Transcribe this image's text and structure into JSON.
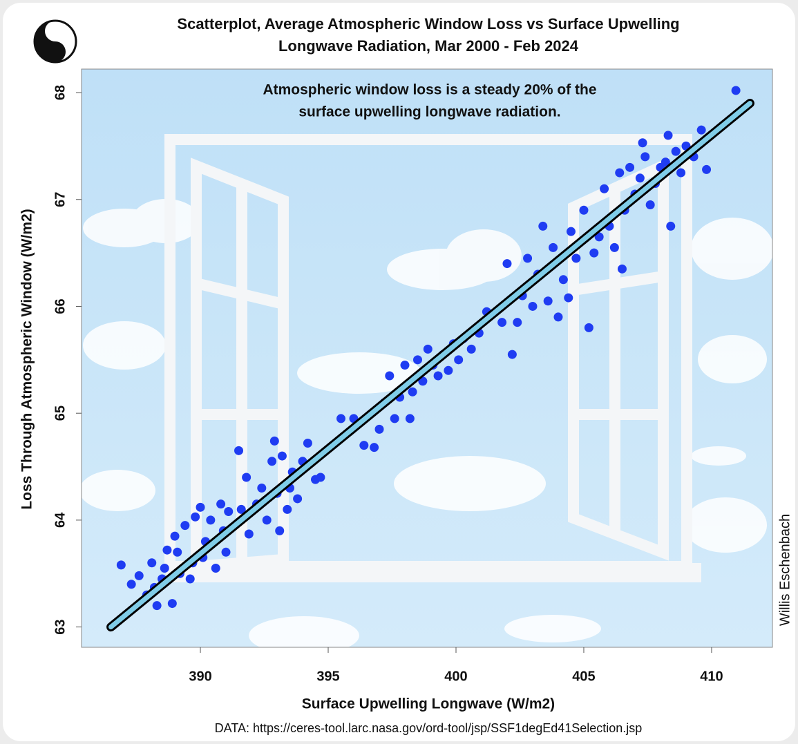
{
  "chart_data": {
    "type": "scatter",
    "title": [
      "Scatterplot, Average Atmospheric Window Loss vs Surface Upwelling",
      "Longwave Radiation, Mar 2000 - Feb 2024"
    ],
    "annotation": [
      "Atmospheric window loss is a steady 20% of the",
      "surface upwelling longwave radiation."
    ],
    "xlabel": "Surface Upwelling Longwave (W/m2)",
    "ylabel": "Loss Through Atmospheric Window (W/m2)",
    "source": "DATA: https://ceres-tool.larc.nasa.gov/ord-tool/jsp/SSF1degEd41Selection.jsp",
    "credit": "Willis Eschenbach",
    "xlim": [
      385.35,
      412.38
    ],
    "ylim": [
      62.81,
      68.22
    ],
    "xticks": [
      390,
      395,
      400,
      405,
      410
    ],
    "yticks": [
      63,
      64,
      65,
      66,
      67,
      68
    ],
    "series": [
      {
        "color": "#1f3cf2",
        "x": [
          386.9,
          387.3,
          387.6,
          387.9,
          388.1,
          388.3,
          388.5,
          388.7,
          388.9,
          389.0,
          389.2,
          389.4,
          389.6,
          389.8,
          390.0,
          390.2,
          390.4,
          390.6,
          390.8,
          391.0,
          391.1,
          388.2,
          388.6,
          389.1,
          389.7,
          390.1,
          390.9,
          391.5,
          391.6,
          391.8,
          391.9,
          392.2,
          392.4,
          392.6,
          392.8,
          393.0,
          393.1,
          393.2,
          393.4,
          393.6,
          393.8,
          394.0,
          394.2,
          394.5,
          394.7,
          392.9,
          393.5,
          395.5,
          396.0,
          396.4,
          396.8,
          397.0,
          397.2,
          397.4,
          397.6,
          397.8,
          398.0,
          398.2,
          398.3,
          398.5,
          398.7,
          398.9,
          399.1,
          399.3,
          399.5,
          399.7,
          399.9,
          400.1,
          400.3,
          400.6,
          400.9,
          401.2,
          401.8,
          402.0,
          402.2,
          402.4,
          402.6,
          402.8,
          403.0,
          403.2,
          403.4,
          403.6,
          403.8,
          404.0,
          404.2,
          404.5,
          404.7,
          405.0,
          405.2,
          405.4,
          405.6,
          405.8,
          406.0,
          406.2,
          406.4,
          406.6,
          406.8,
          407.0,
          407.2,
          407.4,
          407.6,
          407.8,
          408.0,
          408.2,
          408.4,
          408.6,
          408.8,
          409.0,
          409.3,
          409.6,
          409.8,
          404.4,
          406.5,
          407.3,
          408.3,
          410.95
        ],
        "y": [
          63.58,
          63.4,
          63.48,
          63.3,
          63.6,
          63.2,
          63.45,
          63.72,
          63.22,
          63.85,
          63.5,
          63.95,
          63.45,
          64.03,
          64.12,
          63.8,
          64.0,
          63.55,
          64.15,
          63.7,
          64.08,
          63.37,
          63.55,
          63.7,
          63.6,
          63.65,
          63.9,
          64.65,
          64.1,
          64.4,
          63.87,
          64.15,
          64.3,
          64.0,
          64.55,
          64.25,
          63.9,
          64.6,
          64.1,
          64.45,
          64.2,
          64.55,
          64.72,
          64.38,
          64.4,
          64.74,
          64.3,
          64.95,
          64.95,
          64.7,
          64.68,
          64.85,
          65.1,
          65.35,
          64.95,
          65.15,
          65.45,
          64.95,
          65.2,
          65.5,
          65.3,
          65.6,
          65.45,
          65.35,
          65.55,
          65.4,
          65.65,
          65.5,
          65.7,
          65.6,
          65.75,
          65.95,
          65.85,
          66.4,
          65.55,
          65.85,
          66.1,
          66.45,
          66.0,
          66.3,
          66.75,
          66.05,
          66.55,
          65.9,
          66.25,
          66.7,
          66.45,
          66.9,
          65.8,
          66.5,
          66.65,
          67.1,
          66.75,
          66.55,
          67.25,
          66.9,
          67.3,
          67.05,
          67.2,
          67.4,
          66.95,
          67.15,
          67.3,
          67.35,
          66.75,
          67.45,
          67.25,
          67.5,
          67.4,
          67.65,
          67.28,
          66.08,
          66.35,
          67.53,
          67.6,
          68.02
        ]
      }
    ],
    "fit_line": {
      "x": [
        386.5,
        411.5
      ],
      "y": [
        63.0,
        67.9
      ],
      "color": "#80cde8",
      "edge_color": "#000000"
    }
  }
}
